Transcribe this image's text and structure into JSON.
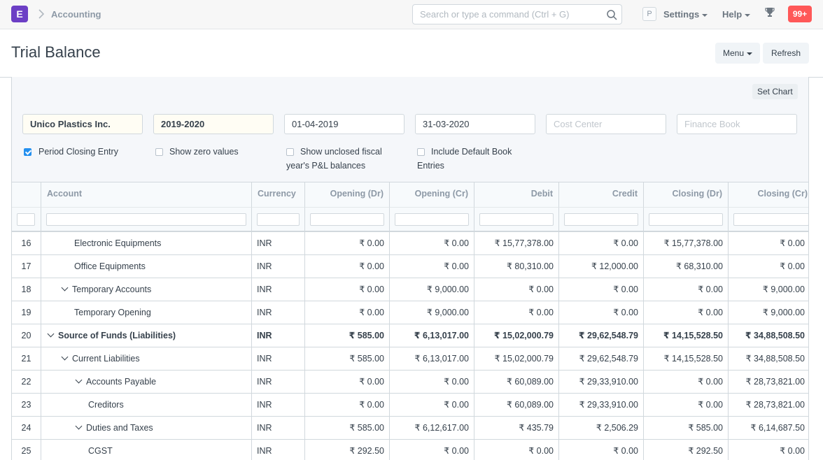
{
  "navbar": {
    "logo": "E",
    "breadcrumb": "Accounting",
    "search_placeholder": "Search or type a command (Ctrl + G)",
    "avatar": "P",
    "settings": "Settings",
    "help": "Help",
    "notifications": "99+"
  },
  "page": {
    "title": "Trial Balance",
    "menu_label": "Menu",
    "refresh_label": "Refresh"
  },
  "filters": {
    "set_chart": "Set Chart",
    "company": "Unico Plastics Inc.",
    "fiscal_year": "2019-2020",
    "from_date": "01-04-2019",
    "to_date": "31-03-2020",
    "cost_center_placeholder": "Cost Center",
    "finance_book_placeholder": "Finance Book",
    "period_closing": "Period Closing Entry",
    "show_zero": "Show zero values",
    "show_unclosed_1": "Show unclosed fiscal",
    "show_unclosed_2": "year's P&L balances",
    "include_default_1": "Include Default Book",
    "include_default_2": "Entries"
  },
  "table": {
    "columns": [
      "Account",
      "Currency",
      "Opening (Dr)",
      "Opening (Cr)",
      "Debit",
      "Credit",
      "Closing (Dr)",
      "Closing (Cr)"
    ],
    "rows": [
      {
        "n": "16",
        "account": "Electronic Equipments",
        "cur": "INR",
        "od": "₹ 0.00",
        "oc": "₹ 0.00",
        "dr": "₹ 15,77,378.00",
        "cr": "₹ 0.00",
        "cd": "₹ 15,77,378.00",
        "cc": "₹ 0.00"
      },
      {
        "n": "17",
        "account": "Office Equipments",
        "cur": "INR",
        "od": "₹ 0.00",
        "oc": "₹ 0.00",
        "dr": "₹ 80,310.00",
        "cr": "₹ 12,000.00",
        "cd": "₹ 68,310.00",
        "cc": "₹ 0.00"
      },
      {
        "n": "18",
        "account": "Temporary Accounts",
        "cur": "INR",
        "od": "₹ 0.00",
        "oc": "₹ 9,000.00",
        "dr": "₹ 0.00",
        "cr": "₹ 0.00",
        "cd": "₹ 0.00",
        "cc": "₹ 9,000.00"
      },
      {
        "n": "19",
        "account": "Temporary Opening",
        "cur": "INR",
        "od": "₹ 0.00",
        "oc": "₹ 9,000.00",
        "dr": "₹ 0.00",
        "cr": "₹ 0.00",
        "cd": "₹ 0.00",
        "cc": "₹ 9,000.00"
      },
      {
        "n": "20",
        "account": "Source of Funds (Liabilities)",
        "cur": "INR",
        "od": "₹ 585.00",
        "oc": "₹ 6,13,017.00",
        "dr": "₹ 15,02,000.79",
        "cr": "₹ 29,62,548.79",
        "cd": "₹ 14,15,528.50",
        "cc": "₹ 34,88,508.50"
      },
      {
        "n": "21",
        "account": "Current Liabilities",
        "cur": "INR",
        "od": "₹ 585.00",
        "oc": "₹ 6,13,017.00",
        "dr": "₹ 15,02,000.79",
        "cr": "₹ 29,62,548.79",
        "cd": "₹ 14,15,528.50",
        "cc": "₹ 34,88,508.50"
      },
      {
        "n": "22",
        "account": "Accounts Payable",
        "cur": "INR",
        "od": "₹ 0.00",
        "oc": "₹ 0.00",
        "dr": "₹ 60,089.00",
        "cr": "₹ 29,33,910.00",
        "cd": "₹ 0.00",
        "cc": "₹ 28,73,821.00"
      },
      {
        "n": "23",
        "account": "Creditors",
        "cur": "INR",
        "od": "₹ 0.00",
        "oc": "₹ 0.00",
        "dr": "₹ 60,089.00",
        "cr": "₹ 29,33,910.00",
        "cd": "₹ 0.00",
        "cc": "₹ 28,73,821.00"
      },
      {
        "n": "24",
        "account": "Duties and Taxes",
        "cur": "INR",
        "od": "₹ 585.00",
        "oc": "₹ 6,12,617.00",
        "dr": "₹ 435.79",
        "cr": "₹ 2,506.29",
        "cd": "₹ 585.00",
        "cc": "₹ 6,14,687.50"
      },
      {
        "n": "25",
        "account": "CGST",
        "cur": "INR",
        "od": "₹ 292.50",
        "oc": "₹ 0.00",
        "dr": "₹ 0.00",
        "cr": "₹ 0.00",
        "cd": "₹ 292.50",
        "cc": "₹ 0.00"
      }
    ]
  }
}
